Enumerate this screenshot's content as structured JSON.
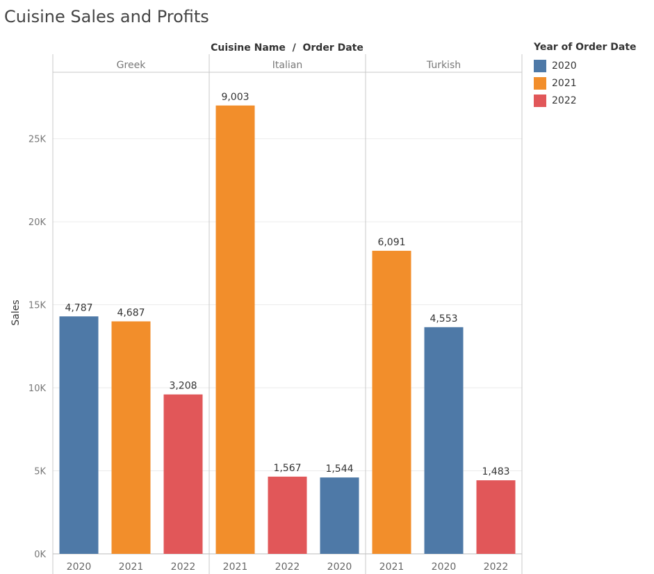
{
  "title": "Cuisine Sales and Profits",
  "legend": {
    "title": "Year of Order Date",
    "items": [
      {
        "label": "2020",
        "color": "#4e79a7"
      },
      {
        "label": "2021",
        "color": "#f28e2b"
      },
      {
        "label": "2022",
        "color": "#e15759"
      }
    ]
  },
  "chart_data": {
    "type": "bar",
    "title": "Cuisine Sales and Profits",
    "column_header": "Cuisine Name  /  Order Date",
    "ylabel": "Sales",
    "ylim": [
      0,
      29000
    ],
    "yticks": [
      0,
      5000,
      10000,
      15000,
      20000,
      25000
    ],
    "ytick_labels": [
      "0K",
      "5K",
      "10K",
      "15K",
      "20K",
      "25K"
    ],
    "grid": true,
    "legend_position": "right",
    "panels": [
      {
        "name": "Greek",
        "bars": [
          {
            "year": "2020",
            "value": 14300,
            "label": "4,787"
          },
          {
            "year": "2021",
            "value": 14000,
            "label": "4,687"
          },
          {
            "year": "2022",
            "value": 9600,
            "label": "3,208"
          }
        ]
      },
      {
        "name": "Italian",
        "bars": [
          {
            "year": "2021",
            "value": 27000,
            "label": "9,003"
          },
          {
            "year": "2022",
            "value": 4650,
            "label": "1,567"
          },
          {
            "year": "2020",
            "value": 4600,
            "label": "1,544"
          }
        ]
      },
      {
        "name": "Turkish",
        "bars": [
          {
            "year": "2021",
            "value": 18250,
            "label": "6,091"
          },
          {
            "year": "2020",
            "value": 13650,
            "label": "4,553"
          },
          {
            "year": "2022",
            "value": 4430,
            "label": "1,483"
          }
        ]
      }
    ]
  }
}
